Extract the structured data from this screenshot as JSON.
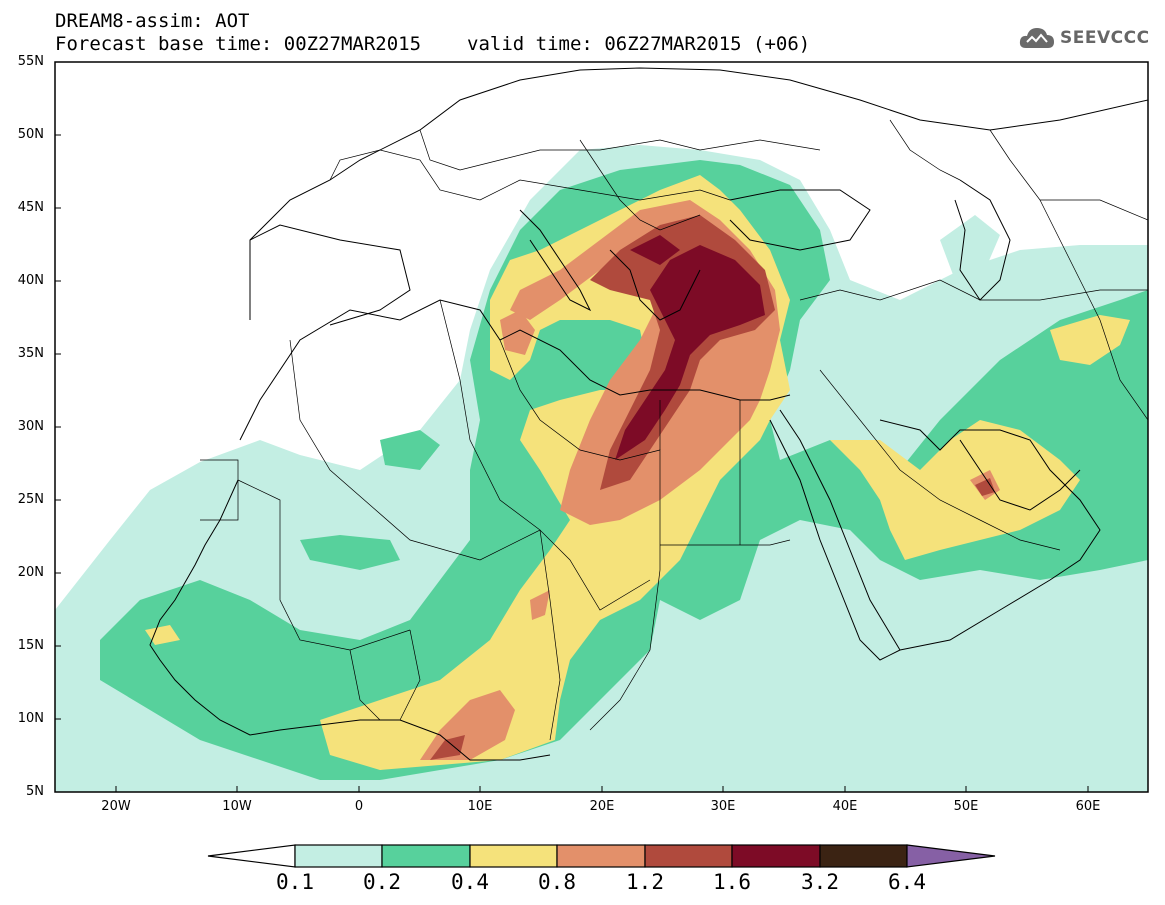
{
  "header": {
    "model_title": "DREAM8-assim: AOT",
    "base_time": "Forecast base time: 00Z27MAR2015",
    "valid_time": "valid time: 06Z27MAR2015 (+06)"
  },
  "logo": {
    "text": "SEEVCCC",
    "icon": "cloud-icon"
  },
  "map": {
    "lat_labels": [
      "55N",
      "50N",
      "45N",
      "40N",
      "35N",
      "30N",
      "25N",
      "20N",
      "15N",
      "10N",
      "5N"
    ],
    "lon_labels": [
      "20W",
      "10W",
      "0",
      "10E",
      "20E",
      "30E",
      "40E",
      "50E",
      "60E"
    ]
  },
  "colorbar": {
    "levels": [
      "0.1",
      "0.2",
      "0.4",
      "0.8",
      "1.2",
      "1.6",
      "3.2",
      "6.4"
    ],
    "colors": [
      "#ffffff",
      "#c3eee3",
      "#57d19c",
      "#f5e27b",
      "#e3906a",
      "#b04a3d",
      "#7d0b26",
      "#3b2313",
      "#8660a5"
    ]
  }
}
